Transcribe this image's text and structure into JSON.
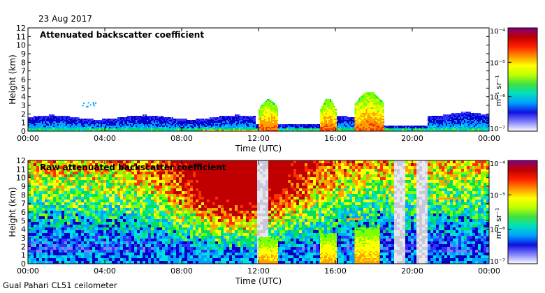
{
  "header": {
    "date": "23 Aug 2017"
  },
  "footer": {
    "instrument": "Gual Pahari CL51 ceilometer"
  },
  "chart_data": [
    {
      "type": "heatmap",
      "title": "Attenuated backscatter coefficient",
      "xlabel": "Time (UTC)",
      "ylabel": "Height (km)",
      "x_ticks": [
        "00:00",
        "04:00",
        "08:00",
        "12:00",
        "16:00",
        "20:00",
        "00:00"
      ],
      "y_ticks": [
        "0",
        "1",
        "2",
        "3",
        "4",
        "5",
        "6",
        "7",
        "8",
        "9",
        "10",
        "11",
        "12"
      ],
      "xlim_hours": [
        0,
        24
      ],
      "ylim_km": [
        0,
        12
      ],
      "colorbar": {
        "scale": "log",
        "ticks": [
          "10⁻⁷",
          "10⁻⁶",
          "10⁻⁵",
          "10⁻⁴"
        ],
        "label": "m⁻¹ sr⁻¹",
        "colors": [
          "#ffffff",
          "#3030ff",
          "#00c8ff",
          "#00e080",
          "#ffff00",
          "#ff8000",
          "#d00000",
          "#800080"
        ]
      },
      "features": [
        {
          "name": "boundary layer",
          "start_hour": 0,
          "end_hour": 12,
          "top_km": 1.8
        },
        {
          "name": "boundary layer",
          "start_hour": 12.5,
          "end_hour": 15.5,
          "top_km": 0.6
        },
        {
          "name": "boundary layer",
          "start_hour": 21,
          "end_hour": 24,
          "top_km": 2.2
        },
        {
          "name": "rain",
          "start_hour": 12.0,
          "end_hour": 13.0,
          "top_km": 3.5
        },
        {
          "name": "rain",
          "start_hour": 15.2,
          "end_hour": 16.0,
          "top_km": 3.7
        },
        {
          "name": "rain",
          "start_hour": 17.0,
          "end_hour": 18.5,
          "top_km": 4.5
        }
      ]
    },
    {
      "type": "heatmap",
      "title": "Raw attenuated backscatter coefficient",
      "xlabel": "Time (UTC)",
      "ylabel": "Height (km)",
      "x_ticks": [
        "00:00",
        "04:00",
        "08:00",
        "12:00",
        "16:00",
        "20:00",
        "00:00"
      ],
      "y_ticks": [
        "0",
        "1",
        "2",
        "3",
        "4",
        "5",
        "6",
        "7",
        "8",
        "9",
        "10",
        "11",
        "12"
      ],
      "xlim_hours": [
        0,
        24
      ],
      "ylim_km": [
        0,
        12
      ],
      "colorbar": {
        "scale": "log",
        "ticks": [
          "10⁻⁷",
          "10⁻⁶",
          "10⁻⁵",
          "10⁻⁴"
        ],
        "label": "m⁻¹ sr⁻¹"
      },
      "features": [
        {
          "name": "noise max",
          "hour": 10.5,
          "height_km": 10
        },
        {
          "name": "gap",
          "start_hour": 11.8,
          "end_hour": 12.5
        },
        {
          "name": "gap",
          "start_hour": 19.0,
          "end_hour": 19.6
        },
        {
          "name": "gap",
          "start_hour": 20.2,
          "end_hour": 20.8
        },
        {
          "name": "layer",
          "start_hour": 16.5,
          "end_hour": 17.2,
          "top_km": 5.2
        },
        {
          "name": "layer",
          "start_hour": 21.2,
          "end_hour": 23.0,
          "top_km": 7.6
        }
      ]
    }
  ]
}
